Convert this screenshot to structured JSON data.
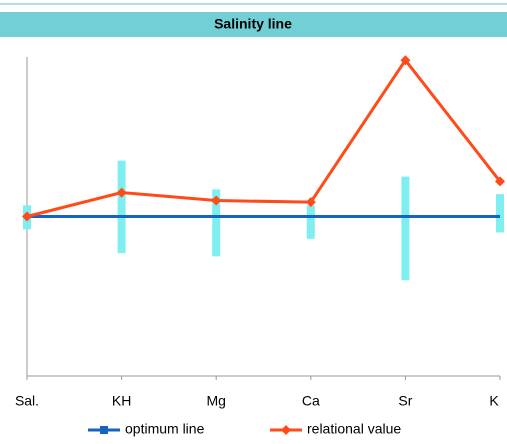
{
  "chart_data": {
    "type": "line",
    "title": "Salinity line",
    "categories": [
      "Sal.",
      "KH",
      "Mg",
      "Ca",
      "Sr",
      "K"
    ],
    "series": [
      {
        "name": "optimum line",
        "color": "#1565c0",
        "values": [
          1,
          1,
          1,
          1,
          1,
          1
        ]
      },
      {
        "name": "relational value",
        "color": "#ff4a1a",
        "values": [
          1.0,
          1.15,
          1.1,
          1.09,
          1.98,
          1.22
        ]
      }
    ],
    "tolerance": {
      "color": "#7eeef0",
      "low": [
        0.92,
        0.77,
        0.75,
        0.86,
        0.6,
        0.9
      ],
      "high": [
        1.07,
        1.35,
        1.17,
        1.07,
        1.25,
        1.14
      ]
    },
    "ylim": [
      0,
      2
    ],
    "grid": false,
    "legend": "bottom"
  }
}
